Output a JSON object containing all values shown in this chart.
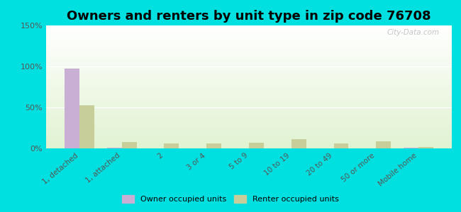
{
  "title": "Owners and renters by unit type in zip code 76708",
  "categories": [
    "1, detached",
    "1, attached",
    "2",
    "3 or 4",
    "5 to 9",
    "10 to 19",
    "20 to 49",
    "50 or more",
    "Mobile home"
  ],
  "owner_values": [
    97,
    1,
    0,
    0,
    0,
    0,
    0,
    0,
    1
  ],
  "renter_values": [
    53,
    8,
    6,
    6,
    7,
    11,
    6,
    9,
    2
  ],
  "owner_color": "#c9afd4",
  "renter_color": "#c8ce9a",
  "background_color": "#00e0e0",
  "ylim": [
    0,
    150
  ],
  "yticks": [
    0,
    50,
    100,
    150
  ],
  "ytick_labels": [
    "0%",
    "50%",
    "100%",
    "150%"
  ],
  "title_fontsize": 13,
  "bar_width": 0.35,
  "watermark": "City-Data.com"
}
